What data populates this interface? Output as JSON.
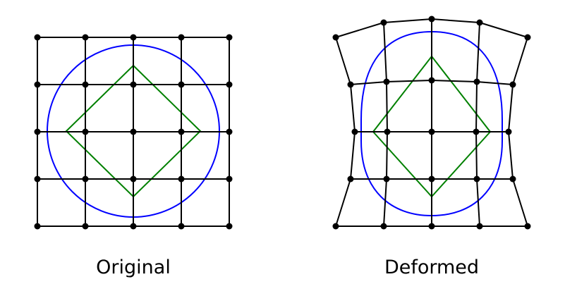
{
  "labels": {
    "original": "Original",
    "deformed": "Deformed"
  },
  "colors": {
    "grid": "#000000",
    "circle": "#0000ff",
    "diamond": "#008000"
  }
}
